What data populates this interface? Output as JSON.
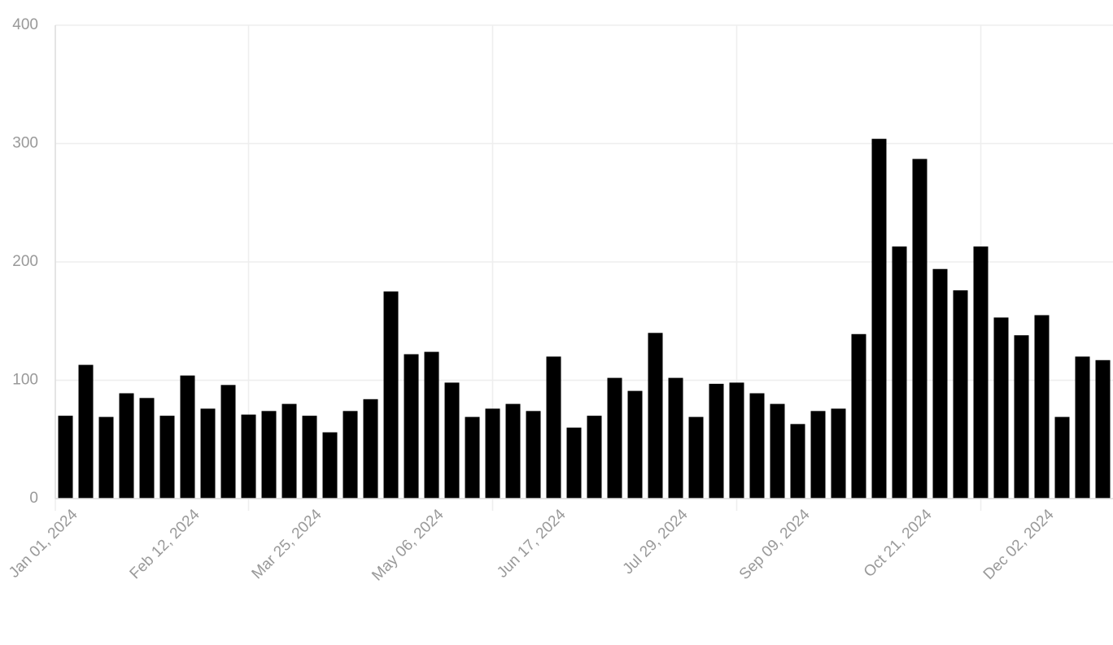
{
  "chart_data": {
    "type": "bar",
    "categories": [
      "Jan 01, 2024",
      null,
      null,
      null,
      null,
      null,
      "Feb 12, 2024",
      null,
      null,
      null,
      null,
      null,
      "Mar 25, 2024",
      null,
      null,
      null,
      null,
      null,
      "May 06, 2024",
      null,
      null,
      null,
      null,
      null,
      "Jun 17, 2024",
      null,
      null,
      null,
      null,
      null,
      "Jul 29, 2024",
      null,
      null,
      null,
      null,
      null,
      "Sep 09, 2024",
      null,
      null,
      null,
      null,
      null,
      "Oct 21, 2024",
      null,
      null,
      null,
      null,
      null,
      "Dec 02, 2024",
      null,
      null,
      null
    ],
    "values": [
      70,
      113,
      69,
      89,
      85,
      70,
      104,
      76,
      96,
      71,
      74,
      80,
      70,
      56,
      74,
      84,
      175,
      122,
      124,
      98,
      69,
      76,
      80,
      74,
      120,
      60,
      70,
      102,
      91,
      140,
      102,
      69,
      97,
      98,
      89,
      80,
      63,
      74,
      76,
      139,
      304,
      213,
      287,
      194,
      176,
      213,
      153,
      138,
      155,
      69,
      120,
      117
    ],
    "color": "#000000",
    "ylim": [
      0,
      400
    ],
    "yticks": [
      0,
      100,
      200,
      300,
      400
    ],
    "grid": true
  }
}
